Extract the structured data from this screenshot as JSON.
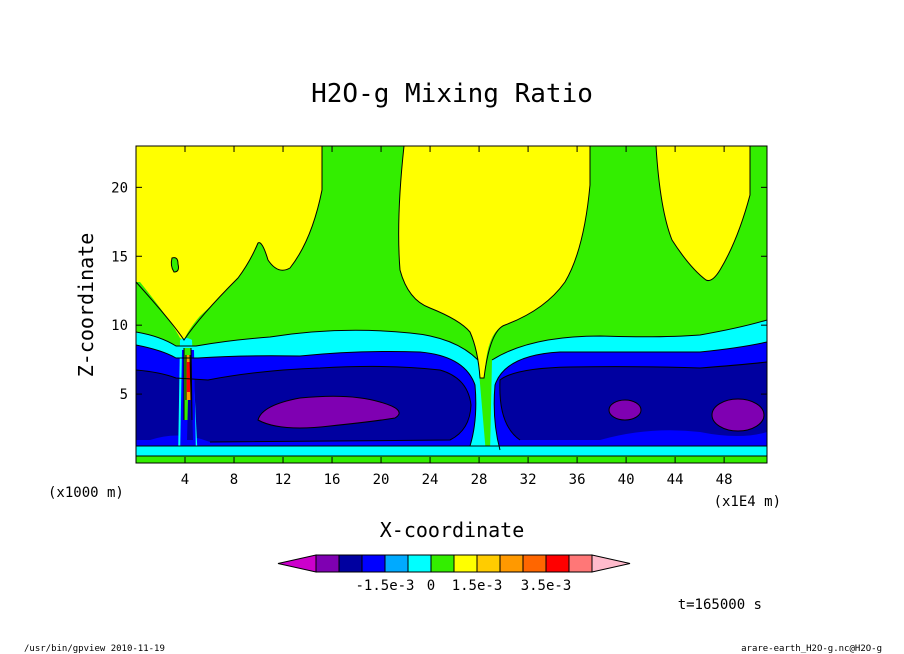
{
  "chart_data": {
    "type": "heatmap",
    "title": "H2O-g Mixing Ratio",
    "xlabel": "X-coordinate",
    "ylabel": "Z-coordinate",
    "x_unit_note": "(x1E4 m)",
    "y_unit_note": "(x1000 m)",
    "xlim": [
      0,
      51.5
    ],
    "ylim": [
      0,
      23
    ],
    "x_ticks": [
      4,
      8,
      12,
      16,
      20,
      24,
      28,
      32,
      36,
      40,
      44,
      48
    ],
    "y_ticks": [
      5,
      10,
      15,
      20
    ],
    "x_tick_labels": [
      "4",
      "8",
      "12",
      "16",
      "20",
      "24",
      "28",
      "32",
      "36",
      "40",
      "44",
      "48"
    ],
    "y_tick_labels": [
      "5",
      "10",
      "15",
      "20"
    ],
    "colorbar": {
      "colors": [
        "#cc00cc",
        "#7f00b2",
        "#0000a0",
        "#0000ff",
        "#00aaff",
        "#00ffff",
        "#33ee00",
        "#ffff00",
        "#ffcc00",
        "#ff9900",
        "#ff6600",
        "#ff0000",
        "#ff7777",
        "#ffbbcc"
      ],
      "tick_labels": [
        "-1.5e-3",
        "0",
        "1.5e-3",
        "3.5e-3"
      ]
    },
    "annotation": "t=165000 s"
  },
  "footer": {
    "left": "/usr/bin/gpview   2010-11-19",
    "right": "arare-earth_H2O-g.nc@H2O-g"
  }
}
